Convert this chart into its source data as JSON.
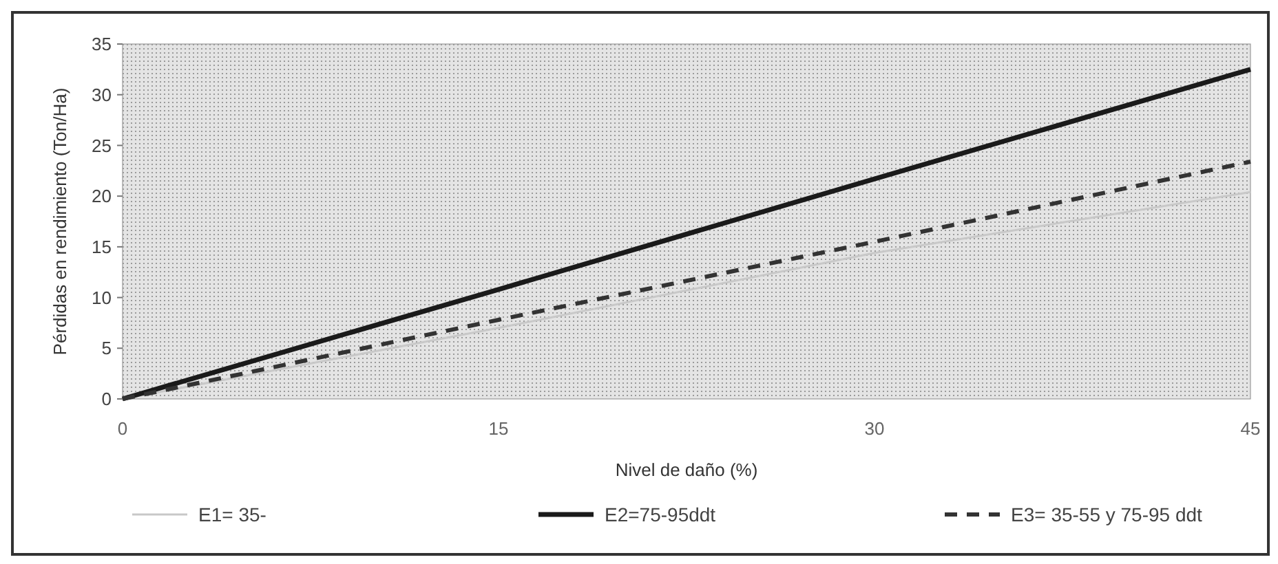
{
  "chart_data": {
    "type": "line",
    "xlabel": "Nivel de daño (%)",
    "ylabel": "Pérdidas en rendimiento (Ton/Ha)",
    "x": [
      0,
      15,
      30,
      45
    ],
    "xlim": [
      0,
      45
    ],
    "xticks": [
      0,
      15,
      30,
      45
    ],
    "ylim": [
      0,
      35
    ],
    "yticks": [
      0,
      5,
      10,
      15,
      20,
      25,
      30,
      35
    ],
    "legend": "bottom",
    "series": [
      {
        "name": "E1= 35-",
        "color": "#c8c8c8",
        "values": [
          0,
          7,
          14.4,
          20.4
        ],
        "line_style": "solid"
      },
      {
        "name": "E2=75-95ddt",
        "color": "#1a1a1a",
        "values": [
          0,
          10.8,
          21.7,
          32.5
        ],
        "line_style": "solid"
      },
      {
        "name": "E3= 35-55 y 75-95 ddt",
        "color": "#333333",
        "values": [
          0,
          7.8,
          15.5,
          23.4
        ],
        "line_style": "dashed"
      }
    ]
  }
}
